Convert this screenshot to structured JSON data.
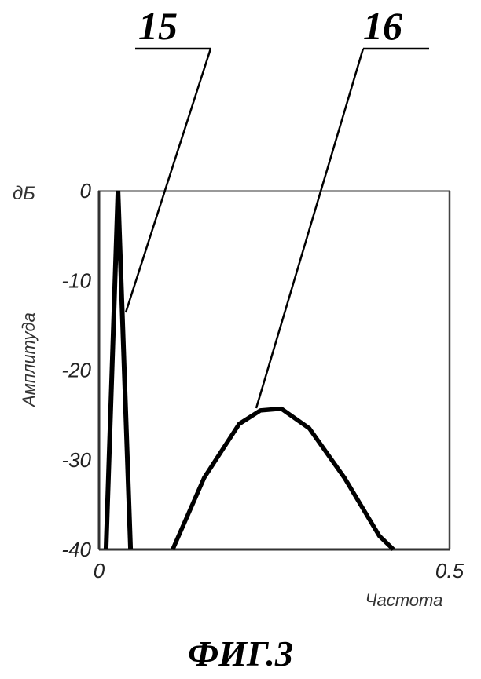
{
  "chart_data": {
    "type": "line",
    "xlabel": "Частота",
    "ylabel": "Амплитуда",
    "y_unit": "дБ",
    "xlim": [
      0,
      0.5
    ],
    "ylim": [
      -40,
      0
    ],
    "x_ticks": [
      "0",
      "0.5"
    ],
    "y_ticks": [
      "0",
      "-10",
      "-20",
      "-30",
      "-40"
    ],
    "grid": false,
    "series": [
      {
        "name": "15",
        "x": [
          0.01,
          0.027,
          0.045
        ],
        "y": [
          -40,
          0,
          -40
        ]
      },
      {
        "name": "16",
        "x": [
          0.105,
          0.15,
          0.2,
          0.23,
          0.26,
          0.3,
          0.35,
          0.4,
          0.42
        ],
        "y": [
          -40,
          -32,
          -26,
          -24.5,
          -24.3,
          -26.5,
          -32,
          -38.5,
          -40
        ]
      }
    ]
  },
  "reference_labels": [
    "15",
    "16"
  ],
  "caption": "ФИГ.3"
}
